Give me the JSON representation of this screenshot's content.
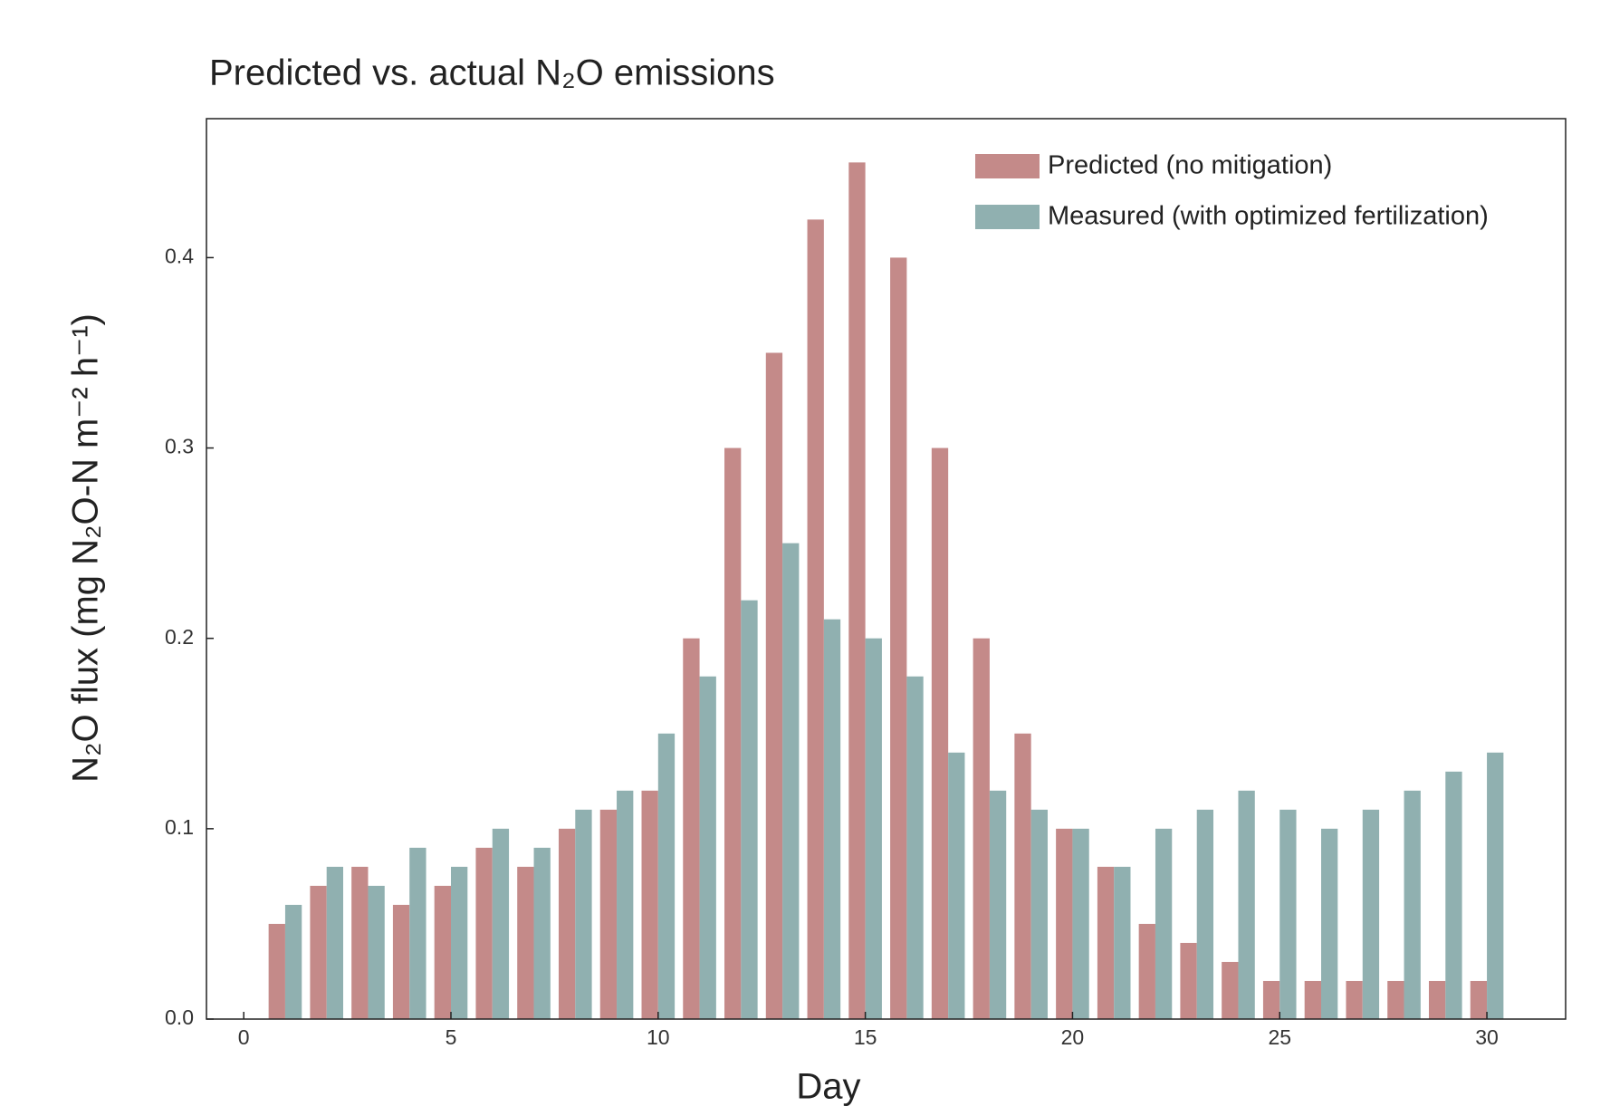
{
  "chart_data": {
    "type": "bar",
    "title": "Predicted vs. actual N₂O emissions",
    "x_label": "Day",
    "y_label": "N₂O flux (mg N₂O-N m⁻² h⁻¹)",
    "x": [
      1,
      2,
      3,
      4,
      5,
      6,
      7,
      8,
      9,
      10,
      11,
      12,
      13,
      14,
      15,
      16,
      17,
      18,
      19,
      20,
      21,
      22,
      23,
      24,
      25,
      26,
      27,
      28,
      29,
      30
    ],
    "series": [
      {
        "name": "Predicted (no mitigation)",
        "color": "#c48a89",
        "values": [
          0.05,
          0.07,
          0.08,
          0.06,
          0.07,
          0.09,
          0.08,
          0.1,
          0.11,
          0.12,
          0.2,
          0.3,
          0.35,
          0.42,
          0.45,
          0.4,
          0.3,
          0.2,
          0.15,
          0.1,
          0.08,
          0.05,
          0.04,
          0.03,
          0.02,
          0.02,
          0.02,
          0.02,
          0.02,
          0.02
        ]
      },
      {
        "name": "Measured (with optimized fertilization)",
        "color": "#90b0b0",
        "values": [
          0.06,
          0.08,
          0.07,
          0.09,
          0.08,
          0.1,
          0.09,
          0.11,
          0.12,
          0.15,
          0.18,
          0.22,
          0.25,
          0.21,
          0.2,
          0.18,
          0.14,
          0.12,
          0.11,
          0.1,
          0.08,
          0.1,
          0.11,
          0.12,
          0.11,
          0.1,
          0.11,
          0.12,
          0.13,
          0.14
        ]
      }
    ],
    "xlim": [
      -0.9,
      31.9
    ],
    "xticks": [
      0,
      5,
      10,
      15,
      20,
      25,
      30
    ],
    "ylim": [
      0,
      0.473
    ],
    "yticks": [
      {
        "value": 0,
        "label": "0.0"
      },
      0.1,
      0.2,
      0.3,
      0.4
    ],
    "grid": false,
    "legend": "upper right"
  }
}
